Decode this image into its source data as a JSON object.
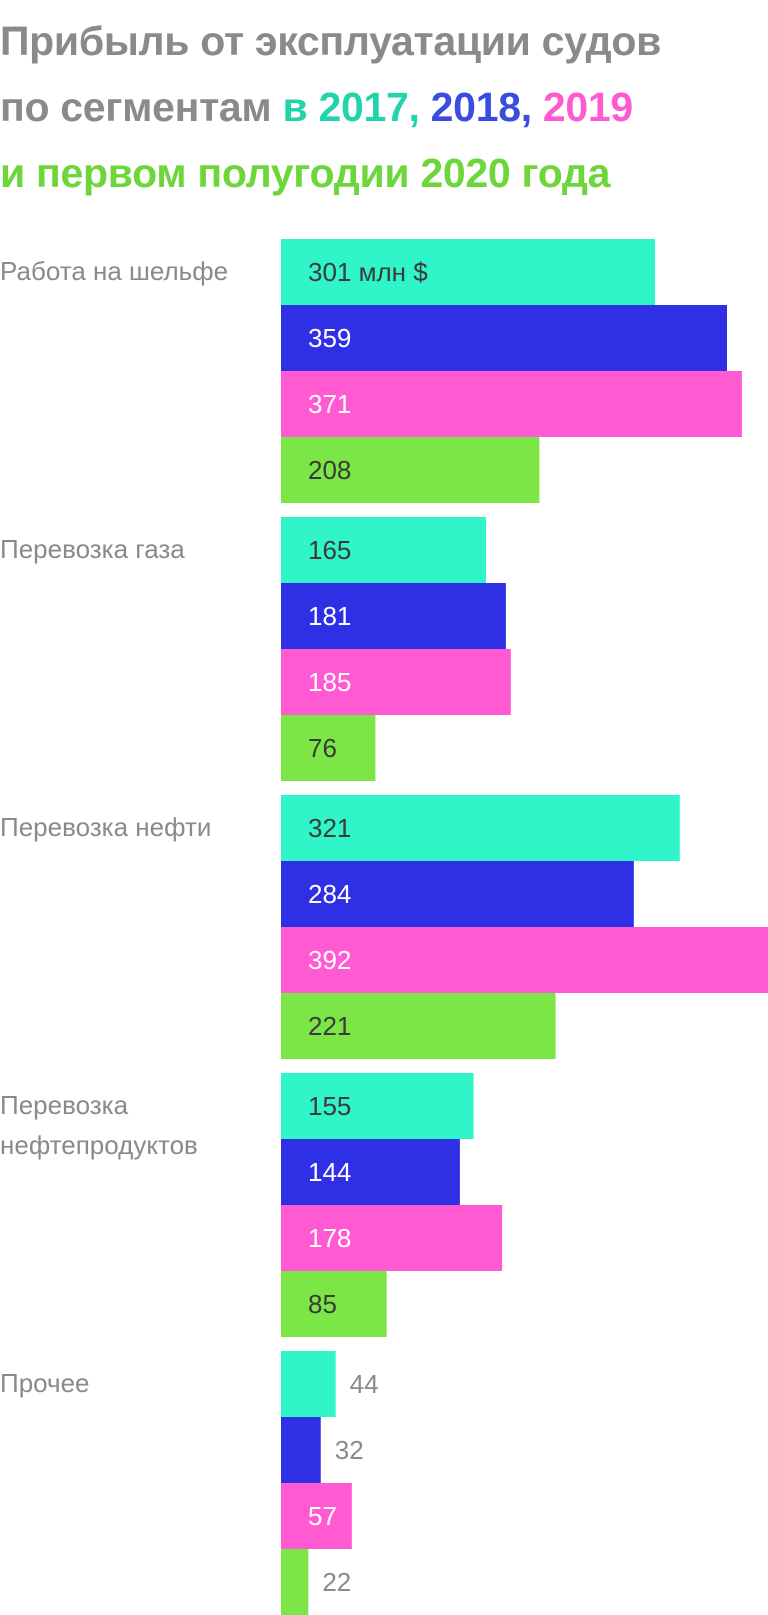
{
  "title": {
    "line1": "Прибыль от эксплуатации судов",
    "line2_prefix": "по сегментам ",
    "line2_y0": "в 2017,",
    "line2_y1": " 2018,",
    "line2_y2": " 2019",
    "line3": "и первом полугодии 2020 года"
  },
  "colors": {
    "title": "#8a8a8a",
    "y2017": "#2ff5c8",
    "y2018": "#2f2fe6",
    "y2019": "#ff5ad2",
    "y2020": "#7ce646",
    "y2017_text": "#22d4ab",
    "y2018_text": "#3a4de0",
    "y2020_text": "#6cd63a"
  },
  "chart_data": {
    "type": "bar",
    "orientation": "horizontal",
    "unit_label": "млн $",
    "categories": [
      "Работа на шельфе",
      "Перевозка газа",
      "Перевозка нефти",
      "Перевозка нефтепродуктов",
      "Прочее"
    ],
    "series": [
      {
        "name": "2017",
        "values": [
          301,
          165,
          321,
          155,
          44
        ]
      },
      {
        "name": "2018",
        "values": [
          359,
          181,
          284,
          144,
          32
        ]
      },
      {
        "name": "2019",
        "values": [
          371,
          185,
          392,
          178,
          57
        ]
      },
      {
        "name": "2020",
        "values": [
          208,
          76,
          221,
          85,
          22
        ]
      }
    ],
    "xlim": [
      0,
      392
    ],
    "grid": false,
    "legend": "title"
  }
}
